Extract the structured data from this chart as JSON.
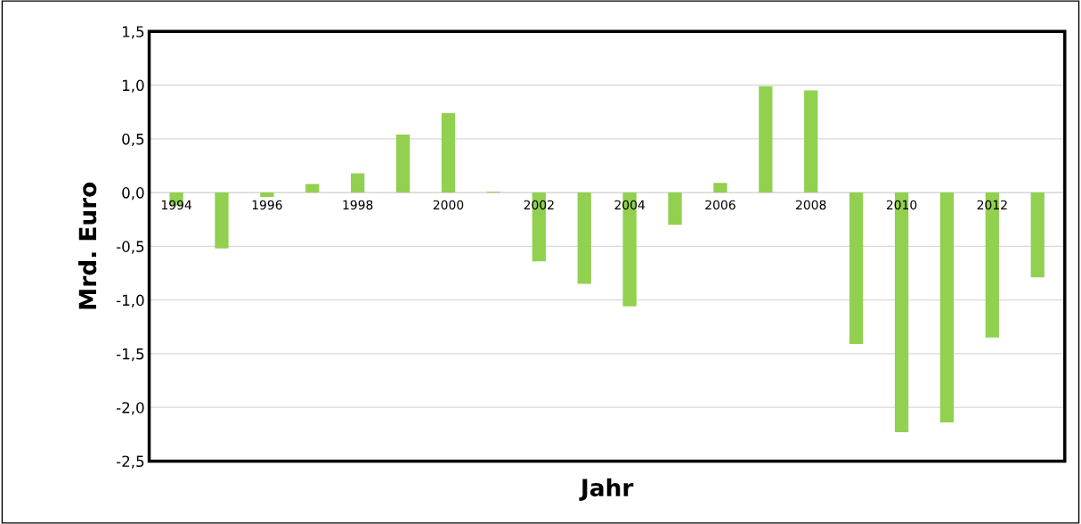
{
  "chart_data": {
    "type": "bar",
    "xlabel": "Jahr",
    "ylabel": "Mrd. Euro",
    "categories": [
      "1994",
      null,
      "1996",
      null,
      "1998",
      null,
      "2000",
      null,
      "2002",
      null,
      "2004",
      null,
      "2006",
      null,
      "2008",
      null,
      "2010",
      null,
      "2012",
      null
    ],
    "values": [
      -0.12,
      -0.52,
      -0.04,
      0.08,
      0.18,
      0.54,
      0.74,
      0.01,
      -0.64,
      -0.85,
      -1.06,
      -0.3,
      0.09,
      0.99,
      0.95,
      -1.41,
      -2.23,
      -2.14,
      -1.35,
      -0.79
    ],
    "color": "#92d050",
    "ylim": [
      -2.5,
      1.5
    ],
    "yticks": [
      {
        "value": -2.5,
        "label": "-2,5"
      },
      {
        "value": -2.0,
        "label": "-2,0"
      },
      {
        "value": -1.5,
        "label": "-1,5"
      },
      {
        "value": -1.0,
        "label": "-1,0"
      },
      {
        "value": -0.5,
        "label": "-0,5"
      },
      {
        "value": 0,
        "label": "0,0"
      },
      {
        "value": 0.5,
        "label": "0,5"
      },
      {
        "value": 1.0,
        "label": "1,0"
      },
      {
        "value": 1.5,
        "label": "1,5"
      }
    ],
    "grid": "y"
  }
}
